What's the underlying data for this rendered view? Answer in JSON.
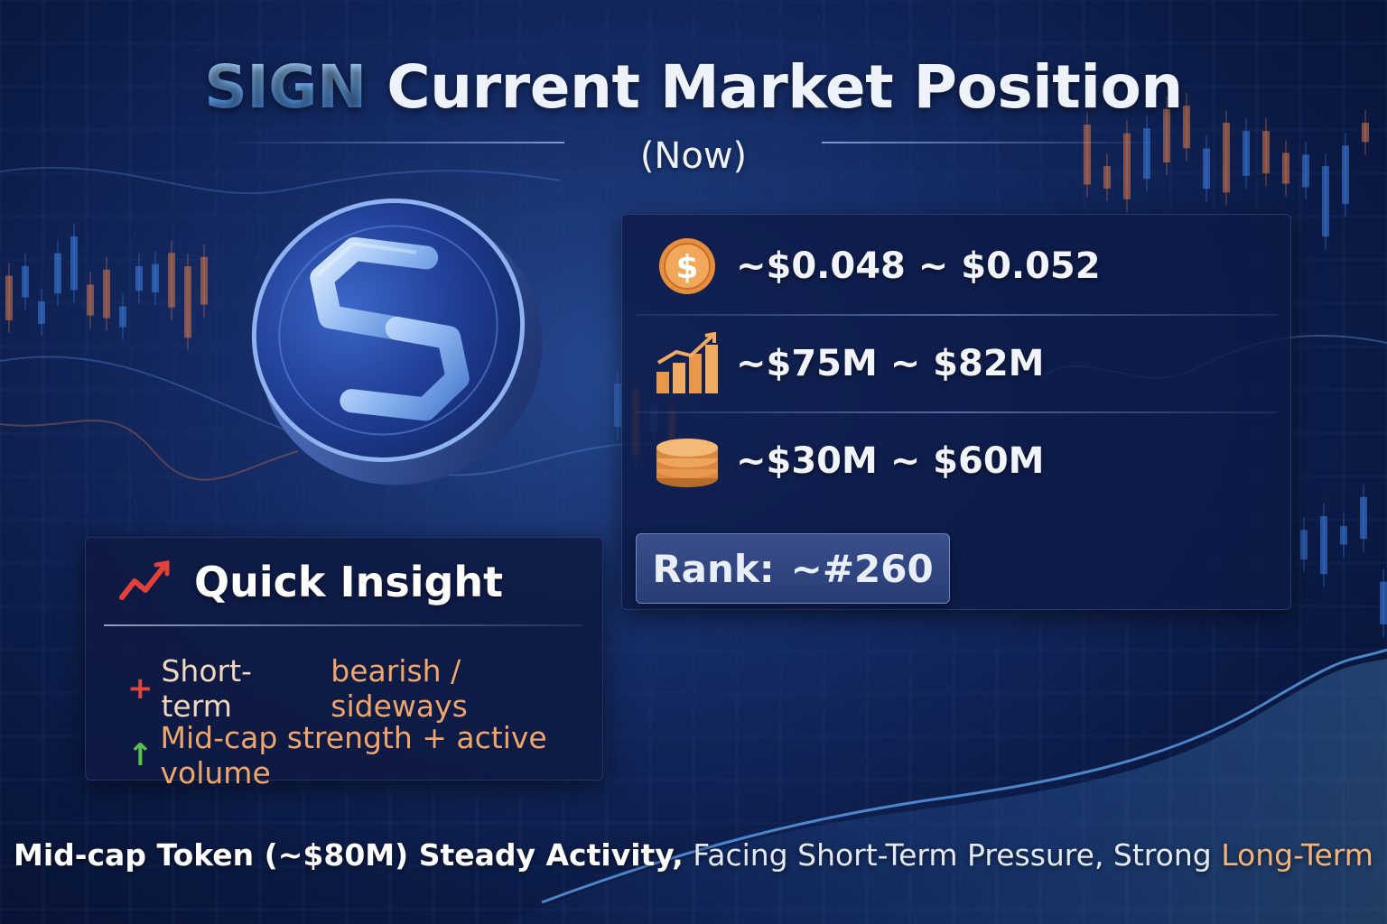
{
  "title": {
    "brand": "SIGN",
    "rest": "Current Market Position"
  },
  "subtitle": "(Now)",
  "stats": [
    {
      "icon": "dollar-coin-icon",
      "value": "~$0.048 ~ $0.052"
    },
    {
      "icon": "bar-chart-up-icon",
      "value": "~$75M ~ $82M"
    },
    {
      "icon": "coin-stack-icon",
      "value": "~$30M ~ $60M"
    }
  ],
  "rank": {
    "label": "Rank:",
    "value": "~#260"
  },
  "insight": {
    "title": "Quick Insight",
    "icon": "trend-line-icon",
    "bullets": [
      {
        "symbol": "+",
        "symbol_color": "#e0463c",
        "text": "Short-term",
        "accent": "bearish / sideways"
      },
      {
        "symbol": "↑",
        "symbol_color": "#58c24c",
        "text": "",
        "accent": "Mid-cap strength + active volume"
      }
    ]
  },
  "footer": {
    "bold": "Mid-cap Token (~$80M) Steady Activity,",
    "regular": "Facing Short-Term Pressure, Strong",
    "accent": "Long-Term"
  },
  "colors": {
    "brand_blue": "#6fb4ff",
    "accent_orange": "#f0a66a",
    "background": "#142a63"
  }
}
